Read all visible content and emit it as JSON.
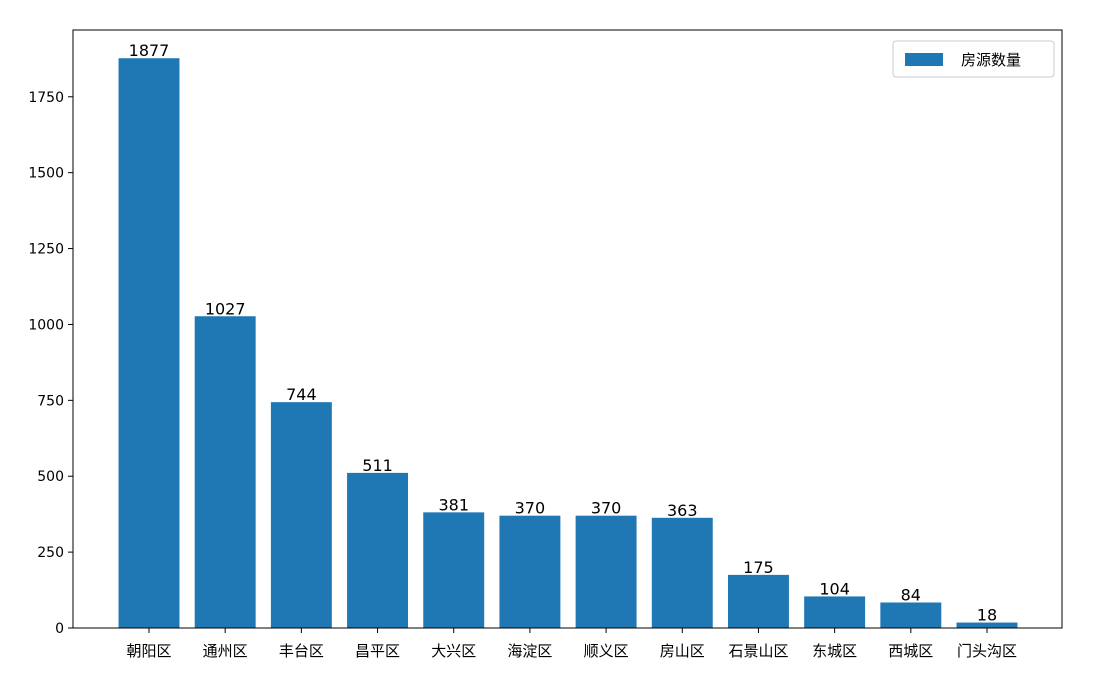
{
  "chart_data": {
    "type": "bar",
    "categories": [
      "朝阳区",
      "通州区",
      "丰台区",
      "昌平区",
      "大兴区",
      "海淀区",
      "顺义区",
      "房山区",
      "石景山区",
      "东城区",
      "西城区",
      "门头沟区"
    ],
    "series": [
      {
        "name": "房源数量",
        "values": [
          1877,
          1027,
          744,
          511,
          381,
          370,
          370,
          363,
          175,
          104,
          84,
          18
        ]
      }
    ],
    "data_labels": [
      "1877",
      "1027",
      "744",
      "511",
      "381",
      "370",
      "370",
      "363",
      "175",
      "104",
      "84",
      "18"
    ],
    "yticks": [
      0,
      250,
      500,
      750,
      1000,
      1250,
      1500,
      1750
    ],
    "ylim": [
      0,
      1970
    ],
    "title": "",
    "xlabel": "",
    "ylabel": "",
    "legend": "top-right",
    "grid": false,
    "bar_color": "#1f77b4"
  }
}
